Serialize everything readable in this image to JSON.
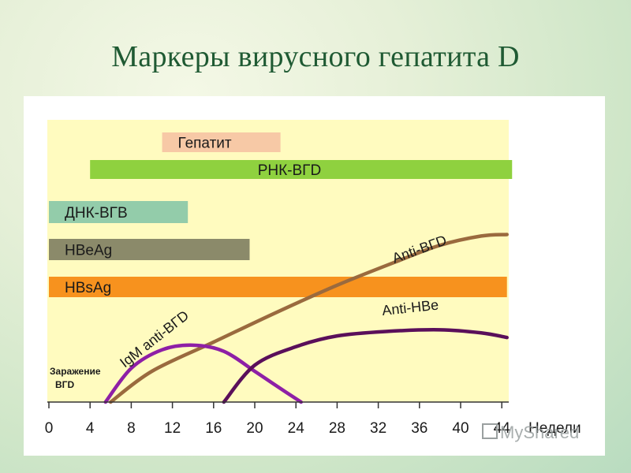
{
  "title": "Маркеры вирусного гепатита D",
  "chart_data": {
    "type": "timeline",
    "x_unit_label": "Недели",
    "x_ticks": [
      0,
      4,
      8,
      12,
      16,
      20,
      24,
      28,
      32,
      36,
      40,
      44
    ],
    "xlim": [
      0,
      45
    ],
    "infection_label_line1": "Заражение",
    "infection_label_line2": "ВГD",
    "bars": [
      {
        "label": "Гепатит",
        "start": 11,
        "end": 22.5,
        "color": "#f7c9a6",
        "label_at": "inside-left"
      },
      {
        "label": "РНК-ВГD",
        "start": 4,
        "end": 45,
        "color": "#8fd13f",
        "label_at": "center"
      },
      {
        "label": "ДНК-ВГВ",
        "start": 0,
        "end": 13.5,
        "color": "#93ccaa",
        "label_at": "inside-left"
      },
      {
        "label": "HBeAg",
        "start": 0,
        "end": 19.5,
        "color": "#8b8a6a",
        "label_at": "inside-left"
      },
      {
        "label": "HBsAg",
        "start": 0,
        "end": 44.5,
        "color": "#f7921e",
        "label_at": "inside-left"
      }
    ],
    "curves": [
      {
        "name": "IgM anti-ВГD",
        "color": "#8e1fa6",
        "points": [
          [
            5.5,
            0
          ],
          [
            8,
            22
          ],
          [
            11,
            34
          ],
          [
            14,
            37
          ],
          [
            17,
            33
          ],
          [
            20,
            20
          ],
          [
            22,
            11
          ],
          [
            24.5,
            0
          ]
        ]
      },
      {
        "name": "Anti-ВГD",
        "color": "#9a6a3e",
        "points": [
          [
            6,
            0
          ],
          [
            10,
            20
          ],
          [
            16,
            39
          ],
          [
            22,
            58
          ],
          [
            28,
            76
          ],
          [
            34,
            92
          ],
          [
            38,
            102
          ],
          [
            42,
            108
          ],
          [
            44.5,
            109
          ]
        ]
      },
      {
        "name": "Anti-HBe",
        "color": "#5a0f5a",
        "points": [
          [
            17,
            0
          ],
          [
            20,
            24
          ],
          [
            24,
            36
          ],
          [
            28,
            43
          ],
          [
            33,
            46
          ],
          [
            38,
            47
          ],
          [
            42,
            45
          ],
          [
            44.5,
            42
          ]
        ]
      }
    ]
  },
  "watermark": "MyShared"
}
